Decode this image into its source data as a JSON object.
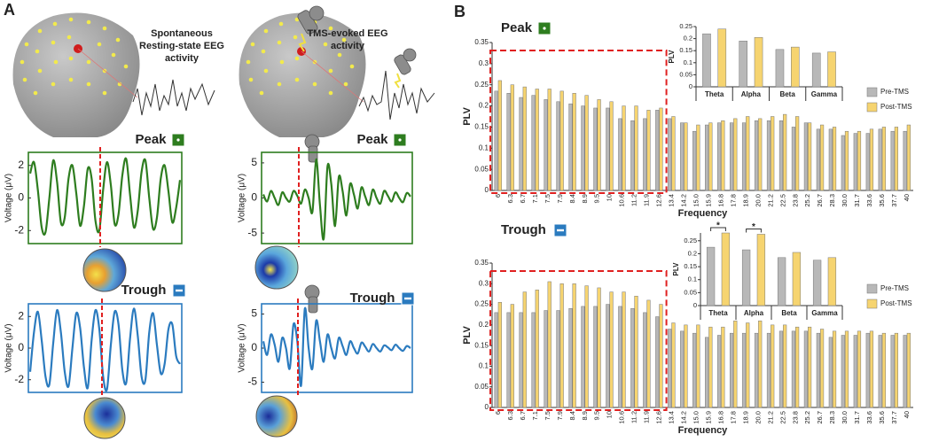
{
  "panel_labels": [
    "A",
    "B"
  ],
  "captions": [
    [
      "Spontaneous",
      "Resting-state EEG",
      "activity"
    ],
    [
      "TMS-evoked EEG",
      "activity"
    ]
  ],
  "chart_data": [
    {
      "type": "line",
      "title": "Peak",
      "ylabel": "Voltage (μV)",
      "color": "#2e7d1f",
      "ylim": [
        -2.8,
        2.8
      ],
      "yticks": [
        -2,
        0,
        2
      ],
      "values": [
        1.5,
        2.2,
        0.5,
        -1.8,
        -2.1,
        0,
        2.3,
        1,
        -1.5,
        -1.2,
        1.2,
        2,
        0.3,
        -1.7,
        -0.5,
        1.8,
        1.2,
        -1.4,
        -2,
        0.5,
        2.2,
        0.8,
        -1.6,
        -1,
        1.4,
        2.4,
        0.2,
        -1.8,
        -0.8,
        1.6,
        2.3,
        0,
        -1.9,
        -1.2,
        1.2,
        2,
        0.4,
        -1.5,
        -0.6,
        1.1
      ]
    },
    {
      "type": "line",
      "title": "Peak",
      "ylabel": "Voltage (μV)",
      "color": "#2e7d1f",
      "ylim": [
        -6.5,
        6.5
      ],
      "yticks": [
        -5,
        0,
        5
      ],
      "values": [
        0.5,
        -0.5,
        1,
        0,
        -1,
        0.8,
        0,
        -0.5,
        1,
        0.3,
        -0.8,
        1.2,
        0,
        -2,
        5.5,
        -1,
        -5.8,
        4.5,
        2,
        -4,
        3,
        1,
        -2.5,
        2,
        0.5,
        -1.5,
        1.5,
        0.2,
        -1,
        1.2,
        0,
        -0.8,
        1,
        0.3,
        -0.5,
        0.8,
        0,
        -0.6,
        0.7,
        0.2
      ]
    },
    {
      "type": "line",
      "title": "Trough",
      "ylabel": "Voltage (μV)",
      "color": "#2b7bbf",
      "ylim": [
        -2.8,
        2.8
      ],
      "yticks": [
        -2,
        0,
        2
      ],
      "values": [
        -1.5,
        1,
        2.3,
        0.5,
        -1.8,
        -2.3,
        0.3,
        2.4,
        1,
        -1.5,
        -2.4,
        0,
        2.2,
        1.3,
        -1.2,
        -2.5,
        0.5,
        2.4,
        1.2,
        -1.8,
        -2.6,
        0.2,
        2.3,
        1.5,
        -1.4,
        -2.2,
        0.6,
        2.5,
        0.8,
        -1.8,
        -2,
        1,
        2.2,
        0.2,
        -1.6,
        -1,
        1.2,
        1.5,
        -0.5,
        -1
      ]
    },
    {
      "type": "line",
      "title": "Trough",
      "ylabel": "Voltage (μV)",
      "color": "#2b7bbf",
      "ylim": [
        -6.5,
        6.5
      ],
      "yticks": [
        -5,
        0,
        5
      ],
      "values": [
        1,
        -1,
        2,
        0.5,
        -2,
        1.5,
        0,
        -3,
        3.5,
        1,
        -5.5,
        5.8,
        0,
        -3,
        4,
        1,
        -2,
        2,
        0,
        -1.5,
        1.5,
        0.3,
        -1,
        1,
        0,
        -0.8,
        0.8,
        0.2,
        -0.5,
        0.6,
        0,
        -0.5,
        0.4,
        0.1,
        -0.3,
        0.5,
        0,
        -0.4,
        0.3,
        0
      ]
    },
    {
      "type": "bar",
      "title": "Peak",
      "title_color": "#2e7d1f",
      "xlabel": "Frequency",
      "ylabel": "PLV",
      "categories": [
        "6",
        "6.3",
        "6.7",
        "7.1",
        "7.5",
        "7.9",
        "8.4",
        "8.9",
        "9.5",
        "10",
        "10.6",
        "11.2",
        "11.9",
        "12.6",
        "13.4",
        "14.2",
        "15.0",
        "15.9",
        "16.8",
        "17.8",
        "18.9",
        "20.0",
        "21.2",
        "22.5",
        "23.8",
        "25.2",
        "26.7",
        "28.3",
        "30.0",
        "31.7",
        "33.6",
        "35.6",
        "37.7",
        "40"
      ],
      "ylim": [
        0,
        0.35
      ],
      "yticks": [
        0,
        0.05,
        0.1,
        0.15,
        0.2,
        0.25,
        0.3,
        0.35
      ],
      "series": [
        {
          "name": "Pre-TMS",
          "color": "#b8b8b8",
          "values": [
            0.235,
            0.23,
            0.22,
            0.225,
            0.215,
            0.21,
            0.205,
            0.2,
            0.195,
            0.195,
            0.17,
            0.165,
            0.17,
            0.19,
            0.17,
            0.16,
            0.14,
            0.155,
            0.16,
            0.16,
            0.16,
            0.165,
            0.165,
            0.165,
            0.15,
            0.16,
            0.145,
            0.145,
            0.13,
            0.135,
            0.135,
            0.145,
            0.14,
            0.14
          ]
        },
        {
          "name": "Post-TMS",
          "color": "#f6d470",
          "values": [
            0.26,
            0.25,
            0.245,
            0.24,
            0.24,
            0.235,
            0.23,
            0.225,
            0.215,
            0.21,
            0.2,
            0.2,
            0.19,
            0.195,
            0.175,
            0.16,
            0.155,
            0.16,
            0.165,
            0.17,
            0.175,
            0.17,
            0.175,
            0.18,
            0.175,
            0.16,
            0.155,
            0.15,
            0.14,
            0.14,
            0.145,
            0.15,
            0.15,
            0.155
          ]
        }
      ]
    },
    {
      "type": "inset",
      "ylabel": "PLV",
      "categories": [
        "Theta",
        "Alpha",
        "Beta",
        "Gamma"
      ],
      "ylim": [
        0,
        0.25
      ],
      "yticks": [
        0,
        0.05,
        0.1,
        0.15,
        0.2,
        0.25
      ],
      "series": [
        {
          "color": "#b8b8b8",
          "values": [
            0.22,
            0.19,
            0.155,
            0.14
          ]
        },
        {
          "color": "#f6d470",
          "values": [
            0.24,
            0.205,
            0.165,
            0.145
          ]
        }
      ]
    },
    {
      "type": "bar",
      "title": "Trough",
      "title_color": "#2b7bbf",
      "xlabel": "Frequency",
      "ylabel": "PLV",
      "categories": [
        "6",
        "6.3",
        "6.7",
        "7.1",
        "7.5",
        "7.9",
        "8.4",
        "8.9",
        "9.5",
        "10",
        "10.6",
        "11.2",
        "11.9",
        "12.6",
        "13.4",
        "14.2",
        "15.0",
        "15.9",
        "16.8",
        "17.8",
        "18.9",
        "20.0",
        "21.2",
        "22.5",
        "23.8",
        "25.2",
        "26.7",
        "28.3",
        "30.0",
        "31.7",
        "33.6",
        "35.6",
        "37.7",
        "40"
      ],
      "ylim": [
        0,
        0.35
      ],
      "yticks": [
        0,
        0.05,
        0.1,
        0.15,
        0.2,
        0.25,
        0.3,
        0.35
      ],
      "series": [
        {
          "name": "Pre-TMS",
          "color": "#b8b8b8",
          "values": [
            0.23,
            0.23,
            0.23,
            0.23,
            0.235,
            0.235,
            0.24,
            0.245,
            0.245,
            0.25,
            0.245,
            0.24,
            0.23,
            0.22,
            0.19,
            0.185,
            0.18,
            0.17,
            0.175,
            0.18,
            0.18,
            0.18,
            0.18,
            0.185,
            0.185,
            0.185,
            0.18,
            0.17,
            0.175,
            0.175,
            0.18,
            0.175,
            0.175,
            0.175
          ]
        },
        {
          "name": "Post-TMS",
          "color": "#f6d470",
          "values": [
            0.255,
            0.25,
            0.28,
            0.285,
            0.305,
            0.3,
            0.3,
            0.295,
            0.29,
            0.28,
            0.28,
            0.27,
            0.26,
            0.25,
            0.205,
            0.2,
            0.2,
            0.195,
            0.195,
            0.21,
            0.205,
            0.21,
            0.2,
            0.2,
            0.195,
            0.195,
            0.19,
            0.185,
            0.185,
            0.185,
            0.185,
            0.18,
            0.18,
            0.18
          ]
        }
      ]
    },
    {
      "type": "inset",
      "ylabel": "PLV",
      "categories": [
        "Theta",
        "Alpha",
        "Beta",
        "Gamma"
      ],
      "ylim": [
        0,
        0.28
      ],
      "yticks": [
        0,
        0.05,
        0.1,
        0.15,
        0.2,
        0.25
      ],
      "series": [
        {
          "color": "#b8b8b8",
          "values": [
            0.225,
            0.215,
            0.185,
            0.175
          ]
        },
        {
          "color": "#f6d470",
          "values": [
            0.28,
            0.275,
            0.205,
            0.185
          ]
        }
      ],
      "annotations": [
        {
          "text": "*",
          "category": "Theta"
        },
        {
          "text": "*",
          "category": "Alpha"
        }
      ]
    }
  ]
}
